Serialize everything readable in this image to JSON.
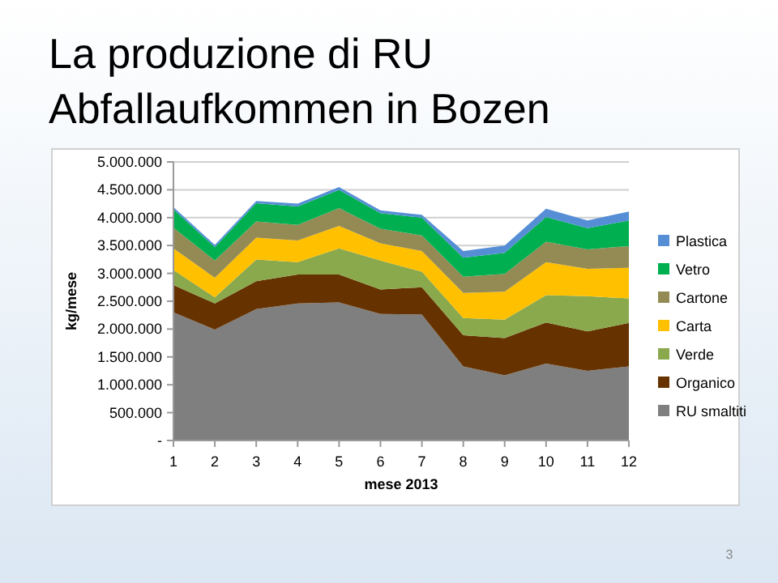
{
  "chart_data": {
    "type": "area",
    "stacked": true,
    "title": "La produzione di RU\nAbfallaufkommen in Bozen",
    "xlabel": "mese 2013",
    "ylabel": "kg/mese",
    "x": [
      1,
      2,
      3,
      4,
      5,
      6,
      7,
      8,
      9,
      10,
      11,
      12
    ],
    "xlim": [
      1,
      12
    ],
    "xticks": [
      1,
      2,
      3,
      4,
      5,
      6,
      7,
      8,
      9,
      10,
      11,
      12
    ],
    "series": [
      {
        "name": "RU smaltiti",
        "color": "#7f7f7f",
        "values": [
          2300000,
          1990000,
          2360000,
          2460000,
          2480000,
          2270000,
          2260000,
          1330000,
          1170000,
          1380000,
          1250000,
          1330000
        ]
      },
      {
        "name": "Organico",
        "color": "#663300",
        "values": [
          490000,
          470000,
          500000,
          520000,
          500000,
          440000,
          490000,
          560000,
          670000,
          740000,
          710000,
          780000
        ]
      },
      {
        "name": "Verde",
        "color": "#8aa84c",
        "values": [
          270000,
          110000,
          390000,
          220000,
          470000,
          520000,
          280000,
          310000,
          330000,
          490000,
          630000,
          440000
        ]
      },
      {
        "name": "Carta",
        "color": "#ffc000",
        "values": [
          390000,
          350000,
          390000,
          390000,
          400000,
          310000,
          370000,
          450000,
          500000,
          590000,
          490000,
          550000
        ]
      },
      {
        "name": "Cartone",
        "color": "#948a54",
        "values": [
          370000,
          310000,
          290000,
          280000,
          320000,
          260000,
          280000,
          290000,
          320000,
          370000,
          350000,
          390000
        ]
      },
      {
        "name": "Vetro",
        "color": "#00b050",
        "values": [
          330000,
          240000,
          330000,
          330000,
          330000,
          280000,
          320000,
          340000,
          380000,
          440000,
          380000,
          460000
        ]
      },
      {
        "name": "Plastica",
        "color": "#558ed5",
        "values": [
          40000,
          40000,
          40000,
          50000,
          50000,
          50000,
          50000,
          120000,
          130000,
          150000,
          140000,
          160000
        ]
      }
    ],
    "ylim": [
      0,
      5000000
    ],
    "yticks": [
      {
        "value": 0,
        "label": "-"
      },
      {
        "value": 500000,
        "label": "500.000"
      },
      {
        "value": 1000000,
        "label": "1.000.000"
      },
      {
        "value": 1500000,
        "label": "1.500.000"
      },
      {
        "value": 2000000,
        "label": "2.000.000"
      },
      {
        "value": 2500000,
        "label": "2.500.000"
      },
      {
        "value": 3000000,
        "label": "3.000.000"
      },
      {
        "value": 3500000,
        "label": "3.500.000"
      },
      {
        "value": 4000000,
        "label": "4.000.000"
      },
      {
        "value": 4500000,
        "label": "4.500.000"
      },
      {
        "value": 5000000,
        "label": "5.000.000"
      }
    ],
    "grid": "y",
    "legend": "right",
    "annotations": [
      "3"
    ]
  }
}
